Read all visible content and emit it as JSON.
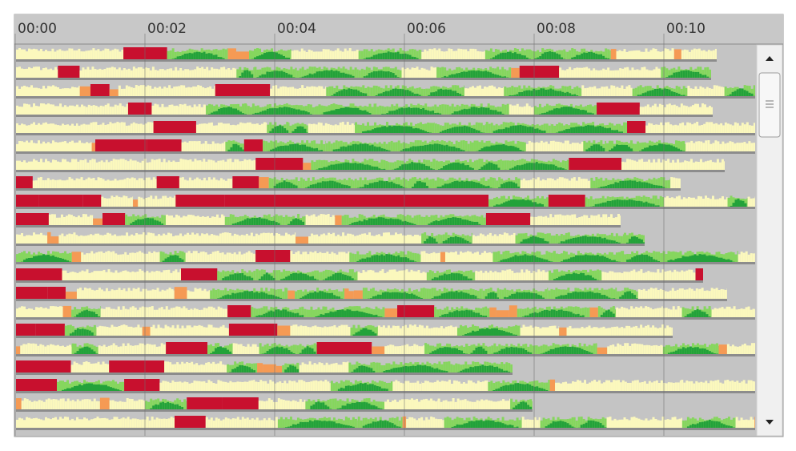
{
  "header": {
    "time_labels": [
      "00:00",
      "00:02",
      "00:04",
      "00:06",
      "00:08",
      "00:10"
    ]
  }
}
